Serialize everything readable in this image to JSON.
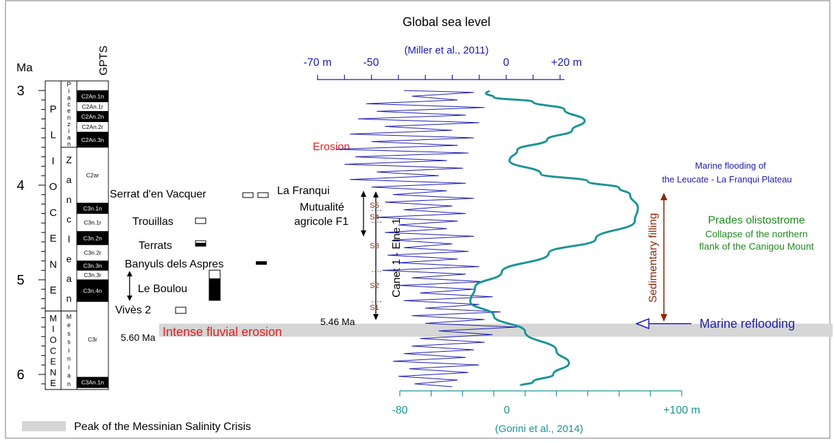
{
  "title": "Global sea level",
  "timescale": {
    "axis_unit": "Ma",
    "ticks": [
      "3",
      "4",
      "5",
      "6"
    ],
    "gpts_header": "GPTS",
    "epochs": {
      "pliocene": [
        "P",
        "L",
        "I",
        "O",
        "C",
        "E",
        "N",
        "E"
      ],
      "miocene": [
        "M",
        "I",
        "O",
        "C",
        "E",
        "N",
        "E"
      ]
    },
    "stages": {
      "piacenzian": [
        "P",
        "i",
        "a",
        "c",
        "e",
        "n",
        "z",
        "i",
        "a",
        "n"
      ],
      "zanclean": [
        "Z",
        "a",
        "n",
        "c",
        "l",
        "e",
        "a",
        "n"
      ],
      "messinian": [
        "M",
        "e",
        "s",
        "s",
        "i",
        "n",
        "i",
        "a",
        "n"
      ]
    },
    "chrons": [
      {
        "label": "C2An.1n",
        "top": 3.0,
        "bottom": 3.12,
        "normal": true
      },
      {
        "label": "C2An.1r",
        "top": 3.12,
        "bottom": 3.22,
        "normal": false
      },
      {
        "label": "C2An.2n",
        "top": 3.22,
        "bottom": 3.33,
        "normal": true
      },
      {
        "label": "C2An.2r",
        "top": 3.33,
        "bottom": 3.44,
        "normal": false
      },
      {
        "label": "C2An.3n",
        "top": 3.44,
        "bottom": 3.6,
        "normal": true
      },
      {
        "label": "C2ar",
        "top": 3.6,
        "bottom": 4.19,
        "normal": false
      },
      {
        "label": "C3n.1n",
        "top": 4.19,
        "bottom": 4.3,
        "normal": true
      },
      {
        "label": "C3n.1r",
        "top": 4.3,
        "bottom": 4.49,
        "normal": false
      },
      {
        "label": "C3n.2n",
        "top": 4.49,
        "bottom": 4.63,
        "normal": true
      },
      {
        "label": "C3n.2r",
        "top": 4.63,
        "bottom": 4.8,
        "normal": false
      },
      {
        "label": "C3n.3n",
        "top": 4.8,
        "bottom": 4.9,
        "normal": true
      },
      {
        "label": "C3n.3r",
        "top": 4.9,
        "bottom": 5.0,
        "normal": false
      },
      {
        "label": "C3n.4n",
        "top": 5.0,
        "bottom": 5.23,
        "normal": true
      },
      {
        "label": "C3r",
        "top": 5.23,
        "bottom": 6.03,
        "normal": false
      },
      {
        "label": "C3An.1n",
        "top": 6.03,
        "bottom": 6.14,
        "normal": true
      }
    ]
  },
  "localities": [
    {
      "name": "Serrat d'en Vacquer",
      "age": 4.11,
      "fill": "white"
    },
    {
      "name": "La Franqui",
      "age": 4.11,
      "fill": "white"
    },
    {
      "name": "Trouillas",
      "age": 4.38,
      "fill": "white"
    },
    {
      "name": "Terrats",
      "age": 4.69,
      "fill": "half-black"
    },
    {
      "name": "Banyuls dels Aspres",
      "age": 4.88,
      "fill": "black"
    },
    {
      "name": "Le Boulou",
      "age": 5.07,
      "fill": "mostly-black"
    },
    {
      "name": "Vivès 2",
      "age": 5.34,
      "fill": "white"
    }
  ],
  "boreholes": {
    "mutualite_label_1": "Mutualité",
    "mutualite_label_2": "agricole F1",
    "canet_label": "Canet 1 - Elne 1",
    "sequences": [
      "S5",
      "S4",
      "S3",
      "S2",
      "S1"
    ]
  },
  "annotations": {
    "erosion": "Erosion",
    "age_546": "5.46 Ma",
    "age_560": "5.60 Ma",
    "intense_erosion": "Intense fluvial erosion",
    "marine_flooding_1": "Marine flooding of",
    "marine_flooding_2": "the Leucate - La Franqui Plateau",
    "prades_1": "Prades olistostrome",
    "prades_2": "Collapse of the northern",
    "prades_3": "flank of the Canigou Mount",
    "sedimentary_filling": "Sedimentary filling",
    "marine_reflooding": "Marine reflooding",
    "legend_msc": "Peak of the Messinian Salinity Crisis"
  },
  "top_axis": {
    "ticks": [
      "-70 m",
      "-50",
      "0",
      "+20 m"
    ],
    "source": "(Miller et al., 2011)",
    "color": "#1a1ab4"
  },
  "bottom_axis": {
    "ticks": [
      "-80",
      "0",
      "+100 m"
    ],
    "source": "(Gorini et al., 2014)",
    "color": "#1a9494"
  },
  "colors": {
    "miller_curve": "#1a1ab4",
    "gorini_curve": "#1a9494",
    "red_text": "#e02020",
    "green_text": "#1f8a1f",
    "brown_arrow": "#8b2a0a",
    "msc_band": "#d6d6d6"
  },
  "chart_data": {
    "type": "line",
    "y_axis": "Age (Ma)",
    "ylim": [
      6.15,
      2.95
    ],
    "series": [
      {
        "name": "(Gorini et al., 2014)",
        "x_unit": "m",
        "xlim": [
          -80,
          100
        ],
        "points": [
          [
            -23,
            3.0
          ],
          [
            -25,
            3.03
          ],
          [
            -20,
            3.07
          ],
          [
            5,
            3.12
          ],
          [
            25,
            3.2
          ],
          [
            38,
            3.32
          ],
          [
            30,
            3.42
          ],
          [
            14,
            3.52
          ],
          [
            -5,
            3.63
          ],
          [
            -10,
            3.74
          ],
          [
            10,
            3.88
          ],
          [
            40,
            3.96
          ],
          [
            60,
            4.03
          ],
          [
            67,
            4.1
          ],
          [
            72,
            4.24
          ],
          [
            70,
            4.38
          ],
          [
            45,
            4.57
          ],
          [
            15,
            4.72
          ],
          [
            -15,
            4.92
          ],
          [
            -32,
            5.08
          ],
          [
            -35,
            5.23
          ],
          [
            -20,
            5.38
          ],
          [
            0,
            5.55
          ],
          [
            20,
            5.75
          ],
          [
            28,
            5.88
          ],
          [
            18,
            6.0
          ],
          [
            5,
            6.08
          ],
          [
            -3,
            6.12
          ]
        ]
      },
      {
        "name": "(Miller et al., 2011)",
        "x_unit": "m",
        "xlim": [
          -70,
          20
        ],
        "points": [
          [
            -38,
            3.0
          ],
          [
            -12,
            3.02
          ],
          [
            -35,
            3.06
          ],
          [
            -18,
            3.1
          ],
          [
            -52,
            3.14
          ],
          [
            -8,
            3.18
          ],
          [
            -48,
            3.22
          ],
          [
            -15,
            3.26
          ],
          [
            -55,
            3.3
          ],
          [
            -10,
            3.34
          ],
          [
            -45,
            3.38
          ],
          [
            -20,
            3.42
          ],
          [
            -58,
            3.46
          ],
          [
            -12,
            3.5
          ],
          [
            -50,
            3.54
          ],
          [
            -18,
            3.58
          ],
          [
            -63,
            3.62
          ],
          [
            -14,
            3.66
          ],
          [
            -56,
            3.7
          ],
          [
            -22,
            3.74
          ],
          [
            -60,
            3.78
          ],
          [
            -16,
            3.82
          ],
          [
            -48,
            3.86
          ],
          [
            -25,
            3.9
          ],
          [
            -58,
            3.94
          ],
          [
            -15,
            3.98
          ],
          [
            -50,
            4.02
          ],
          [
            -22,
            4.06
          ],
          [
            -42,
            4.1
          ],
          [
            -12,
            4.14
          ],
          [
            -45,
            4.18
          ],
          [
            -20,
            4.22
          ],
          [
            -38,
            4.26
          ],
          [
            -15,
            4.3
          ],
          [
            -48,
            4.34
          ],
          [
            -18,
            4.38
          ],
          [
            -40,
            4.42
          ],
          [
            -22,
            4.46
          ],
          [
            -45,
            4.5
          ],
          [
            -12,
            4.54
          ],
          [
            -42,
            4.58
          ],
          [
            -20,
            4.62
          ],
          [
            -38,
            4.66
          ],
          [
            -14,
            4.7
          ],
          [
            -44,
            4.74
          ],
          [
            -18,
            4.78
          ],
          [
            -40,
            4.82
          ],
          [
            -10,
            4.86
          ],
          [
            -46,
            4.9
          ],
          [
            -15,
            4.94
          ],
          [
            -35,
            4.98
          ],
          [
            -8,
            5.02
          ],
          [
            -40,
            5.06
          ],
          [
            -12,
            5.1
          ],
          [
            -32,
            5.14
          ],
          [
            -5,
            5.18
          ],
          [
            -38,
            5.22
          ],
          [
            -10,
            5.26
          ],
          [
            -30,
            5.3
          ],
          [
            -2,
            5.34
          ],
          [
            -35,
            5.38
          ],
          [
            -8,
            5.42
          ],
          [
            -30,
            5.46
          ],
          [
            4,
            5.5
          ],
          [
            -25,
            5.54
          ],
          [
            -5,
            5.58
          ],
          [
            -32,
            5.62
          ],
          [
            -8,
            5.66
          ],
          [
            -35,
            5.7
          ],
          [
            -12,
            5.74
          ],
          [
            -38,
            5.78
          ],
          [
            -15,
            5.82
          ],
          [
            -42,
            5.86
          ],
          [
            -10,
            5.9
          ],
          [
            -36,
            5.94
          ],
          [
            -14,
            5.98
          ],
          [
            -40,
            6.02
          ],
          [
            -18,
            6.06
          ],
          [
            -34,
            6.1
          ],
          [
            -20,
            6.13
          ]
        ]
      }
    ]
  }
}
